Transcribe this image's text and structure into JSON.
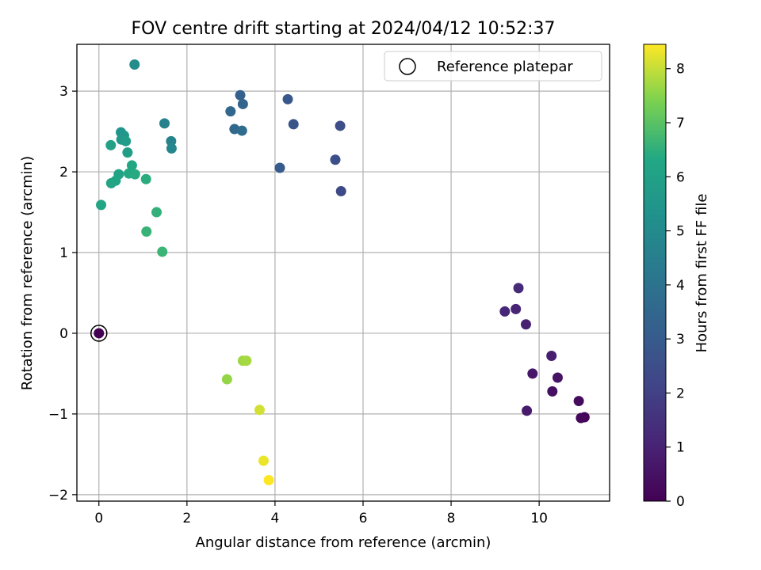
{
  "chart_data": {
    "type": "scatter",
    "title": "FOV centre drift starting at 2024/04/12 10:52:37",
    "xlabel": "Angular distance from reference (arcmin)",
    "ylabel": "Rotation from reference (arcmin)",
    "xlim": [
      -0.5,
      11.6
    ],
    "ylim": [
      -2.08,
      3.58
    ],
    "xticks": [
      "0",
      "2",
      "4",
      "6",
      "8",
      "10"
    ],
    "xtick_values": [
      0,
      2,
      4,
      6,
      8,
      10
    ],
    "yticks": [
      "−2",
      "−1",
      "0",
      "1",
      "2",
      "3"
    ],
    "ytick_values": [
      -2,
      -1,
      0,
      1,
      2,
      3
    ],
    "grid": true,
    "legend": {
      "position": "top-right",
      "label": "Reference platepar"
    },
    "colorbar": {
      "label": "Hours from first FF file",
      "range": [
        0,
        8.45
      ],
      "ticks": [
        "0",
        "1",
        "2",
        "3",
        "4",
        "5",
        "6",
        "7",
        "8"
      ],
      "tick_values": [
        0,
        1,
        2,
        3,
        4,
        5,
        6,
        7,
        8
      ],
      "colormap": "viridis"
    },
    "reference_point": {
      "x": 0,
      "y": 0
    },
    "points": [
      {
        "x": 0.0,
        "y": 0.0,
        "h": 0.0
      },
      {
        "x": 11.03,
        "y": -1.04,
        "h": 0.1
      },
      {
        "x": 10.95,
        "y": -1.05,
        "h": 0.2
      },
      {
        "x": 10.9,
        "y": -0.84,
        "h": 0.3
      },
      {
        "x": 10.3,
        "y": -0.72,
        "h": 0.45
      },
      {
        "x": 10.42,
        "y": -0.55,
        "h": 0.55
      },
      {
        "x": 9.85,
        "y": -0.5,
        "h": 0.65
      },
      {
        "x": 9.72,
        "y": -0.96,
        "h": 0.75
      },
      {
        "x": 10.28,
        "y": -0.28,
        "h": 0.85
      },
      {
        "x": 9.7,
        "y": 0.11,
        "h": 0.95
      },
      {
        "x": 9.47,
        "y": 0.3,
        "h": 1.05
      },
      {
        "x": 9.22,
        "y": 0.27,
        "h": 1.15
      },
      {
        "x": 9.53,
        "y": 0.56,
        "h": 1.25
      },
      {
        "x": 5.5,
        "y": 1.76,
        "h": 2.35
      },
      {
        "x": 5.48,
        "y": 2.57,
        "h": 2.5
      },
      {
        "x": 5.37,
        "y": 2.15,
        "h": 2.6
      },
      {
        "x": 4.42,
        "y": 2.59,
        "h": 2.8
      },
      {
        "x": 4.29,
        "y": 2.9,
        "h": 2.9
      },
      {
        "x": 4.11,
        "y": 2.05,
        "h": 3.0
      },
      {
        "x": 3.21,
        "y": 2.95,
        "h": 3.3
      },
      {
        "x": 3.27,
        "y": 2.84,
        "h": 3.4
      },
      {
        "x": 2.99,
        "y": 2.75,
        "h": 3.5
      },
      {
        "x": 3.08,
        "y": 2.53,
        "h": 3.6
      },
      {
        "x": 3.25,
        "y": 2.51,
        "h": 3.7
      },
      {
        "x": 1.49,
        "y": 2.6,
        "h": 4.6
      },
      {
        "x": 1.64,
        "y": 2.38,
        "h": 4.7
      },
      {
        "x": 1.65,
        "y": 2.29,
        "h": 4.8
      },
      {
        "x": 0.81,
        "y": 3.33,
        "h": 5.1
      },
      {
        "x": 0.5,
        "y": 2.49,
        "h": 5.4
      },
      {
        "x": 0.57,
        "y": 2.45,
        "h": 5.5
      },
      {
        "x": 0.51,
        "y": 2.4,
        "h": 5.6
      },
      {
        "x": 0.61,
        "y": 2.38,
        "h": 5.8
      },
      {
        "x": 0.65,
        "y": 2.24,
        "h": 5.9
      },
      {
        "x": 0.27,
        "y": 2.33,
        "h": 6.0
      },
      {
        "x": 0.45,
        "y": 1.97,
        "h": 6.1
      },
      {
        "x": 0.28,
        "y": 1.86,
        "h": 6.15
      },
      {
        "x": 0.38,
        "y": 1.89,
        "h": 6.2
      },
      {
        "x": 0.05,
        "y": 1.59,
        "h": 6.25
      },
      {
        "x": 0.75,
        "y": 2.08,
        "h": 6.3
      },
      {
        "x": 0.68,
        "y": 1.98,
        "h": 6.35
      },
      {
        "x": 0.82,
        "y": 1.97,
        "h": 6.4
      },
      {
        "x": 1.07,
        "y": 1.91,
        "h": 6.45
      },
      {
        "x": 1.31,
        "y": 1.5,
        "h": 6.55
      },
      {
        "x": 1.08,
        "y": 1.26,
        "h": 6.6
      },
      {
        "x": 1.44,
        "y": 1.01,
        "h": 6.65
      },
      {
        "x": 2.91,
        "y": -0.57,
        "h": 7.6
      },
      {
        "x": 3.27,
        "y": -0.34,
        "h": 7.7
      },
      {
        "x": 3.35,
        "y": -0.34,
        "h": 7.75
      },
      {
        "x": 3.65,
        "y": -0.95,
        "h": 8.1
      },
      {
        "x": 3.74,
        "y": -1.58,
        "h": 8.3
      },
      {
        "x": 3.86,
        "y": -1.82,
        "h": 8.45
      }
    ]
  }
}
